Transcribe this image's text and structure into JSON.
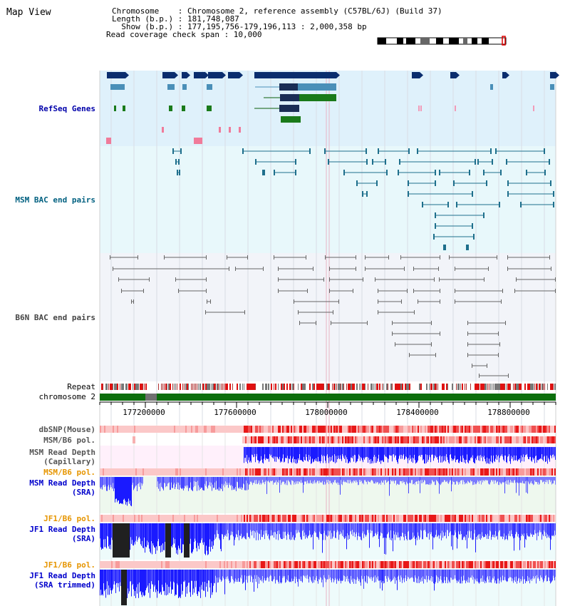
{
  "header": {
    "title": "Map View",
    "chromosome_line": "Chromosome    : Chromosome 2, reference assembly (C57BL/6J) (Build 37)",
    "length_line": "Length (b.p.) : 181,748,087",
    "show_line": "  Show (b.p.) : 177,195,756-179,196,113 : 2,000,358 bp",
    "coverage_line": "Read coverage check span : 10,000"
  },
  "tracks": {
    "refseq": "RefSeq Genes",
    "msm_bac": "MSM BAC end pairs",
    "b6n_bac": "B6N BAC end pairs",
    "repeat": "Repeat",
    "chromosome": "chromosome 2",
    "dbsnp": "dbSNP(Mouse)",
    "msm_b6_pol_cap": "MSM/B6 pol.",
    "msm_depth_cap": "MSM Read Depth\n(Capillary)",
    "msm_b6_pol_sra": "MSM/B6 pol.",
    "msm_depth_sra": "MSM Read Depth\n(SRA)",
    "jf1_b6_pol": "JF1/B6 pol.",
    "jf1_depth": "JF1 Read Depth\n(SRA)",
    "jf1_b6_pol_trim": "JF1/B6 pol.",
    "jf1_depth_trim": "JF1 Read Depth\n(SRA trimmed)"
  },
  "axis": {
    "ticks": [
      "177200000",
      "177600000",
      "178000000",
      "178400000",
      "178800000"
    ]
  },
  "colors": {
    "gene_dark": "#0a2d6e",
    "gene_mid": "#4a8fb8",
    "gene_green": "#1a7a1a",
    "snp_pink": "#f07b9a",
    "msm_bac": "#1e6f8c",
    "b6n_bac": "#666666",
    "depth_blue": "#2a2aff",
    "depth_black": "#202020",
    "chrom_green": "#0c6e0c",
    "refseq_label": "#0000aa",
    "msm_bac_label": "#006080",
    "b6n_bac_label": "#444444",
    "sra_label": "#0000cc",
    "pol_label": "#e69500"
  }
}
